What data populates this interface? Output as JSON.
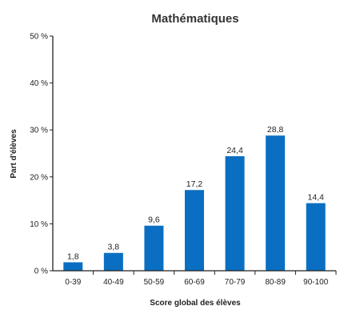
{
  "chart_data": {
    "type": "bar",
    "title": "Mathématiques",
    "xlabel": "Score global des élèves",
    "ylabel": "Part d'élèves",
    "categories": [
      "0-39",
      "40-49",
      "50-59",
      "60-69",
      "70-79",
      "80-89",
      "90-100"
    ],
    "values": [
      1.8,
      3.8,
      9.6,
      17.2,
      24.4,
      28.8,
      14.4
    ],
    "data_labels": [
      "1,8",
      "3,8",
      "9,6",
      "17,2",
      "24,4",
      "28,8",
      "14,4"
    ],
    "ylim": [
      0,
      50
    ],
    "yticks": [
      0,
      10,
      20,
      30,
      40,
      50
    ],
    "ytick_labels": [
      "0 %",
      "10 %",
      "20 %",
      "30 %",
      "40 %",
      "50 %"
    ],
    "grid": false,
    "legend": "none",
    "colors": {
      "bar": "#0a6fc2",
      "axis": "#222222",
      "text": "#222222"
    }
  }
}
